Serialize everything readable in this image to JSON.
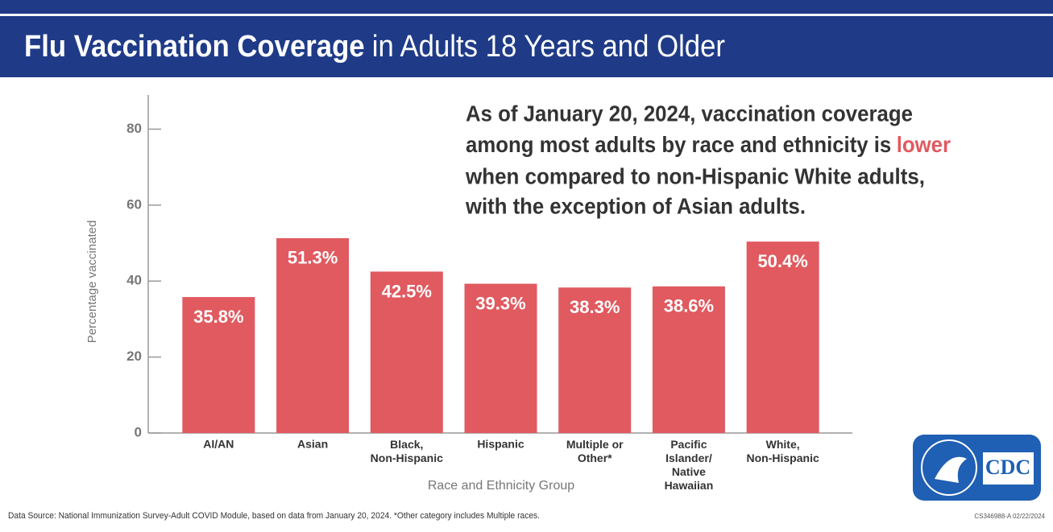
{
  "chart_data": {
    "type": "bar",
    "title_parts": [
      "Flu Vaccination Coverage",
      "in Adults 18 Years and Older"
    ],
    "annotation": {
      "lines": [
        "As of January 20, 2024, vaccination coverage",
        "among most adults by race and ethnicity is",
        "when compared to non-Hispanic White adults,",
        "with the exception of Asian adults."
      ],
      "highlight": "lower"
    },
    "categories": [
      "AI/AN",
      "Asian",
      "Black,\nNon-Hispanic",
      "Hispanic",
      "Multiple or\nOther*",
      "Pacific\nIslander/\nNative\nHawaiian",
      "White,\nNon-Hispanic"
    ],
    "values": [
      35.8,
      51.3,
      42.5,
      39.3,
      38.3,
      38.6,
      50.4
    ],
    "value_labels": [
      "35.8%",
      "51.3%",
      "42.5%",
      "39.3%",
      "38.3%",
      "38.6%",
      "50.4%"
    ],
    "color": "#e05a60",
    "highlight_color": "#e05a60",
    "ylim": [
      0,
      89
    ],
    "yticks": [
      0,
      20,
      40,
      60,
      80
    ],
    "y_label": "Percentage vaccinated",
    "x_label": "Race and Ethnicity Group",
    "footnote": "Data Source: National Immunization Survey-Adult COVID Module, based on data from January 20, 2024. *Other category includes Multiple races.",
    "code": "CS346988-A 02/22/2024",
    "logo": "CDC"
  }
}
